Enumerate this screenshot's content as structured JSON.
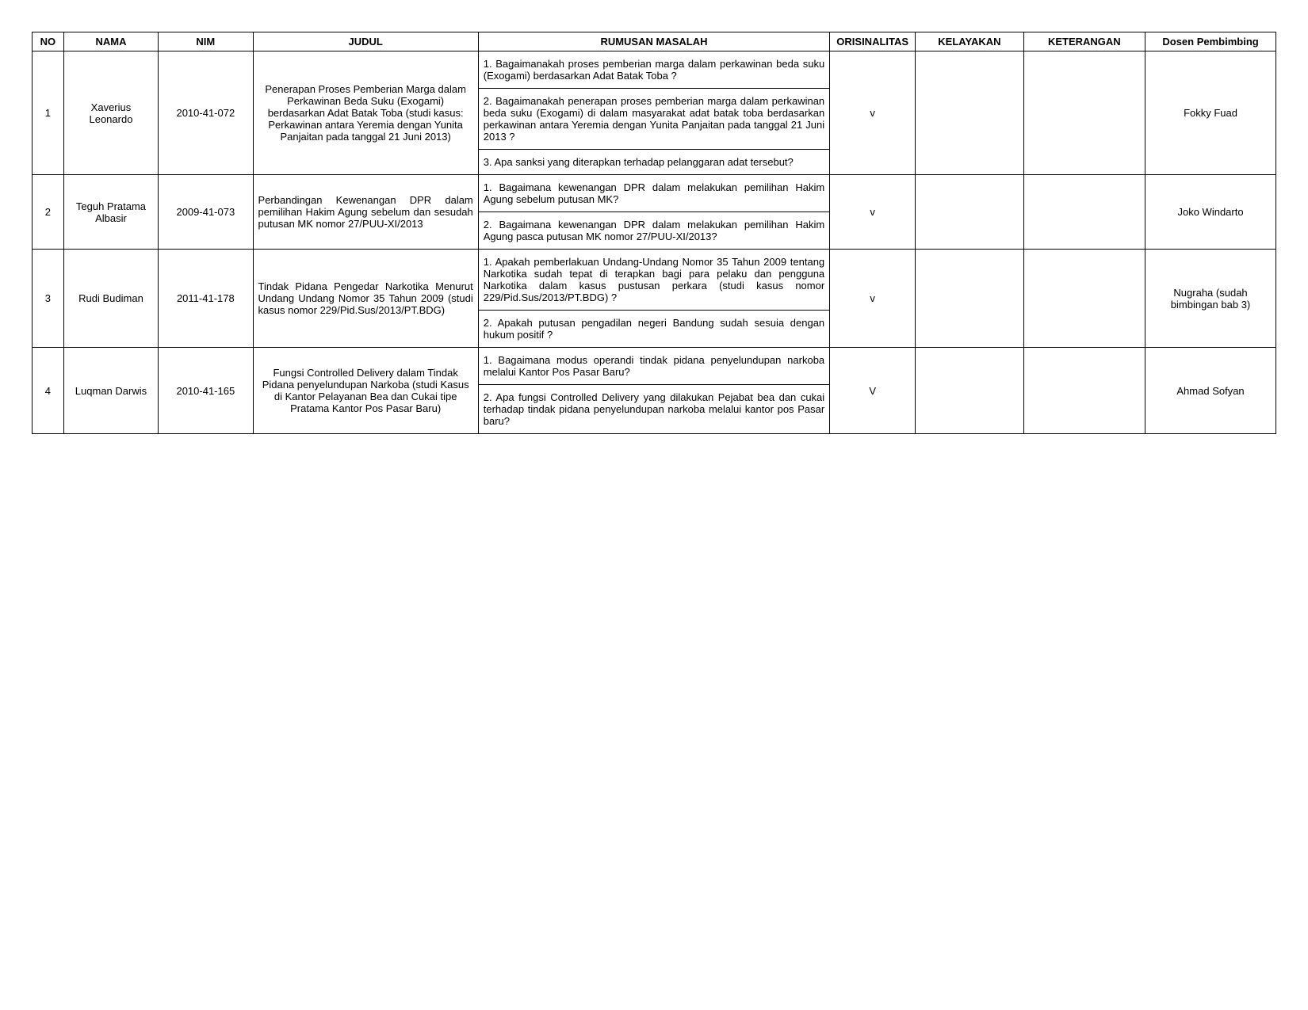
{
  "headers": {
    "no": "NO",
    "nama": "NAMA",
    "nim": "NIM",
    "judul": "JUDUL",
    "rumusan": "RUMUSAN MASALAH",
    "orisinalitas": "ORISINALITAS",
    "kelayakan": "KELAYAKAN",
    "keterangan": "KETERANGAN",
    "dosen": "Dosen Pembimbing"
  },
  "rows": [
    {
      "no": "1",
      "nama": "Xaverius Leonardo",
      "nim": "2010-41-072",
      "judul": "Penerapan Proses Pemberian Marga dalam Perkawinan Beda Suku (Exogami) berdasarkan Adat Batak Toba (studi kasus: Perkawinan antara Yeremia dengan Yunita Panjaitan pada tanggal 21 Juni 2013)",
      "rumusan": [
        "1. Bagaimanakah proses pemberian marga dalam perkawinan beda suku (Exogami) berdasarkan Adat Batak Toba ?",
        "2. Bagaimanakah penerapan proses pemberian marga dalam perkawinan beda suku (Exogami) di dalam masyarakat adat batak toba berdasarkan perkawinan antara Yeremia dengan Yunita Panjaitan pada tanggal 21 Juni 2013 ?",
        "3. Apa sanksi yang diterapkan terhadap pelanggaran adat tersebut?"
      ],
      "orisinalitas": "v",
      "kelayakan": "",
      "keterangan": "",
      "dosen": "Fokky Fuad"
    },
    {
      "no": "2",
      "nama": "Teguh Pratama Albasir",
      "nim": "2009-41-073",
      "judul": "Perbandingan Kewenangan DPR dalam pemilihan Hakim Agung sebelum dan sesudah putusan MK nomor 27/PUU-XI/2013",
      "rumusan": [
        "1. Bagaimana kewenangan DPR dalam melakukan pemilihan Hakim Agung sebelum putusan MK?",
        "2. Bagaimana kewenangan DPR dalam melakukan pemilihan Hakim Agung pasca putusan MK nomor 27/PUU-XI/2013?"
      ],
      "orisinalitas": "v",
      "kelayakan": "",
      "keterangan": "",
      "dosen": "Joko Windarto"
    },
    {
      "no": "3",
      "nama": "Rudi Budiman",
      "nim": "2011-41-178",
      "judul": "Tindak Pidana Pengedar Narkotika Menurut Undang Undang Nomor 35 Tahun 2009 (studi kasus nomor 229/Pid.Sus/2013/PT.BDG)",
      "rumusan": [
        "1. Apakah pemberlakuan Undang-Undang Nomor 35 Tahun 2009 tentang Narkotika sudah tepat di terapkan bagi para pelaku dan pengguna Narkotika dalam kasus pustusan perkara (studi kasus nomor 229/Pid.Sus/2013/PT.BDG) ?",
        "2. Apakah putusan pengadilan negeri Bandung sudah sesuia dengan hukum positif ?"
      ],
      "orisinalitas": "v",
      "kelayakan": "",
      "keterangan": "",
      "dosen": "Nugraha (sudah bimbingan bab 3)"
    },
    {
      "no": "4",
      "nama": "Luqman Darwis",
      "nim": "2010-41-165",
      "judul": "Fungsi Controlled Delivery dalam Tindak Pidana penyelundupan Narkoba (studi Kasus di Kantor Pelayanan Bea dan Cukai tipe Pratama Kantor Pos Pasar Baru)",
      "rumusan": [
        "1. Bagaimana modus operandi tindak pidana penyelundupan narkoba melalui Kantor Pos Pasar Baru?",
        "2. Apa fungsi Controlled Delivery yang dilakukan Pejabat bea dan cukai terhadap tindak pidana penyelundupan narkoba melalui kantor pos Pasar baru?"
      ],
      "orisinalitas": "V",
      "kelayakan": "",
      "keterangan": "",
      "dosen": "Ahmad Sofyan"
    }
  ]
}
